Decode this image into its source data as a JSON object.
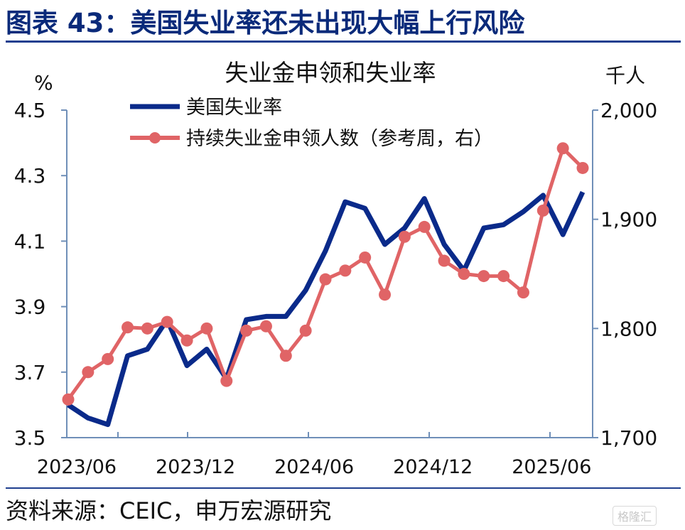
{
  "figure": {
    "title": "图表 43：美国失业率还未出现大幅上行风险",
    "source": "资料来源：CEIC，申万宏源研究",
    "watermark": "格隆汇"
  },
  "colors": {
    "title": "#0a2a7a",
    "rule": "#1f3f8f",
    "axis": "#6f8fb8",
    "series_unemployment": "#0a2a8a",
    "series_claims": "#e06466"
  },
  "chart_data": {
    "type": "line",
    "title": "失业金申领和失业率",
    "y_left_unit": "%",
    "y_right_unit": "千人",
    "ylim_left": [
      3.5,
      4.5
    ],
    "ylim_right": [
      1700,
      2000
    ],
    "yticks_left": [
      "4.5",
      "4.3",
      "4.1",
      "3.9",
      "3.7",
      "3.5"
    ],
    "yticks_right": [
      "2,000",
      "1,900",
      "1,800",
      "1,700"
    ],
    "x_tick_labels": [
      "2023/06",
      "2023/12",
      "2024/06",
      "2024/12",
      "2025/06"
    ],
    "grid": false,
    "legend_position": "top-center",
    "x": [
      "2023/06",
      "2023/07",
      "2023/08",
      "2023/09",
      "2023/10",
      "2023/11",
      "2023/12",
      "2024/01",
      "2024/02",
      "2024/03",
      "2024/04",
      "2024/05",
      "2024/06",
      "2024/07",
      "2024/08",
      "2024/09",
      "2024/10",
      "2024/11",
      "2024/12",
      "2025/01",
      "2025/02",
      "2025/03",
      "2025/04",
      "2025/05",
      "2025/06",
      "2025/07",
      "2025/08"
    ],
    "series": [
      {
        "name": "美国失业率",
        "axis": "left",
        "marker": false,
        "values": [
          3.6,
          3.56,
          3.54,
          3.75,
          3.77,
          3.86,
          3.72,
          3.77,
          3.68,
          3.86,
          3.87,
          3.87,
          3.95,
          4.07,
          4.22,
          4.2,
          4.09,
          4.14,
          4.23,
          4.09,
          4.01,
          4.14,
          4.15,
          4.19,
          4.24,
          4.12,
          4.25
        ]
      },
      {
        "name": "持续失业金申领人数（参考周，右）",
        "axis": "right",
        "marker": true,
        "values": [
          1735,
          1760,
          1772,
          1801,
          1800,
          1806,
          1789,
          1800,
          1752,
          1798,
          1802,
          1775,
          1798,
          1845,
          1853,
          1865,
          1831,
          1884,
          1893,
          1862,
          1850,
          1848,
          1848,
          1833,
          1908,
          1965,
          1947
        ]
      }
    ]
  }
}
